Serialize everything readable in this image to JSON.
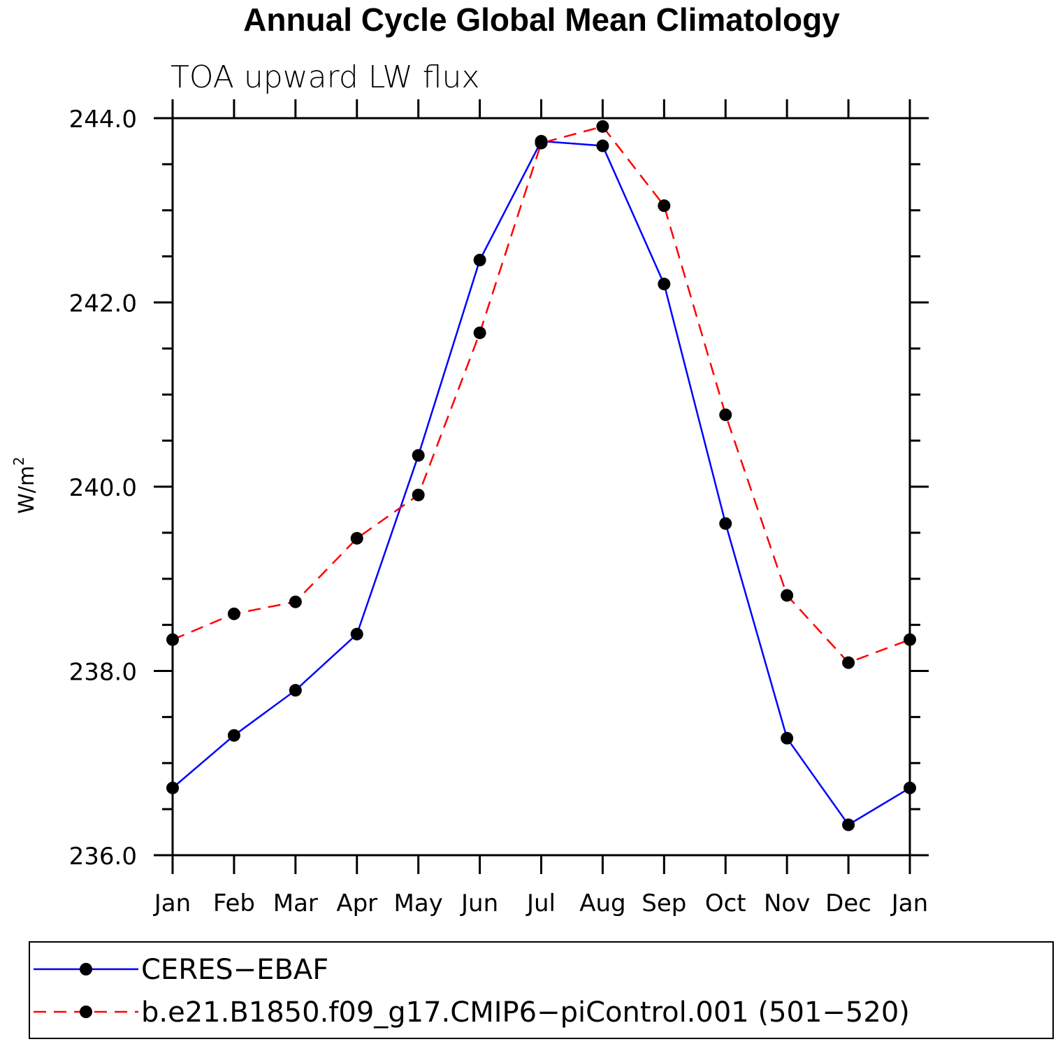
{
  "chart_data": {
    "type": "line",
    "title": "Annual Cycle Global Mean Climatology",
    "subtitle": "TOA upward LW flux",
    "ylabel": "W/m",
    "ylabel_superscript": "2",
    "xlabel": "",
    "categories": [
      "Jan",
      "Feb",
      "Mar",
      "Apr",
      "May",
      "Jun",
      "Jul",
      "Aug",
      "Sep",
      "Oct",
      "Nov",
      "Dec",
      "Jan"
    ],
    "ylim": [
      236.0,
      244.0
    ],
    "yticks": [
      236.0,
      238.0,
      240.0,
      242.0,
      244.0
    ],
    "ytick_labels": [
      "236.0",
      "238.0",
      "240.0",
      "242.0",
      "244.0"
    ],
    "grid": false,
    "legend_position": "bottom",
    "series": [
      {
        "name": "CERES-EBAF",
        "color": "#0000ff",
        "line_style": "solid",
        "marker": "filled-circle",
        "values": [
          236.73,
          237.3,
          237.79,
          238.4,
          240.34,
          242.46,
          243.75,
          243.7,
          242.2,
          239.6,
          237.27,
          236.33,
          236.73
        ]
      },
      {
        "name": "b.e21.B1850.f09_g17.CMIP6-piControl.001 (501-520)",
        "color": "#ff0000",
        "line_style": "dashed",
        "marker": "filled-circle",
        "values": [
          238.34,
          238.62,
          238.75,
          239.44,
          239.91,
          241.67,
          243.73,
          243.91,
          243.05,
          240.78,
          238.82,
          238.09,
          238.34
        ]
      }
    ]
  },
  "legend": {
    "entries": [
      "CERES−EBAF",
      "b.e21.B1850.f09_g17.CMIP6−piControl.001 (501−520)"
    ]
  }
}
